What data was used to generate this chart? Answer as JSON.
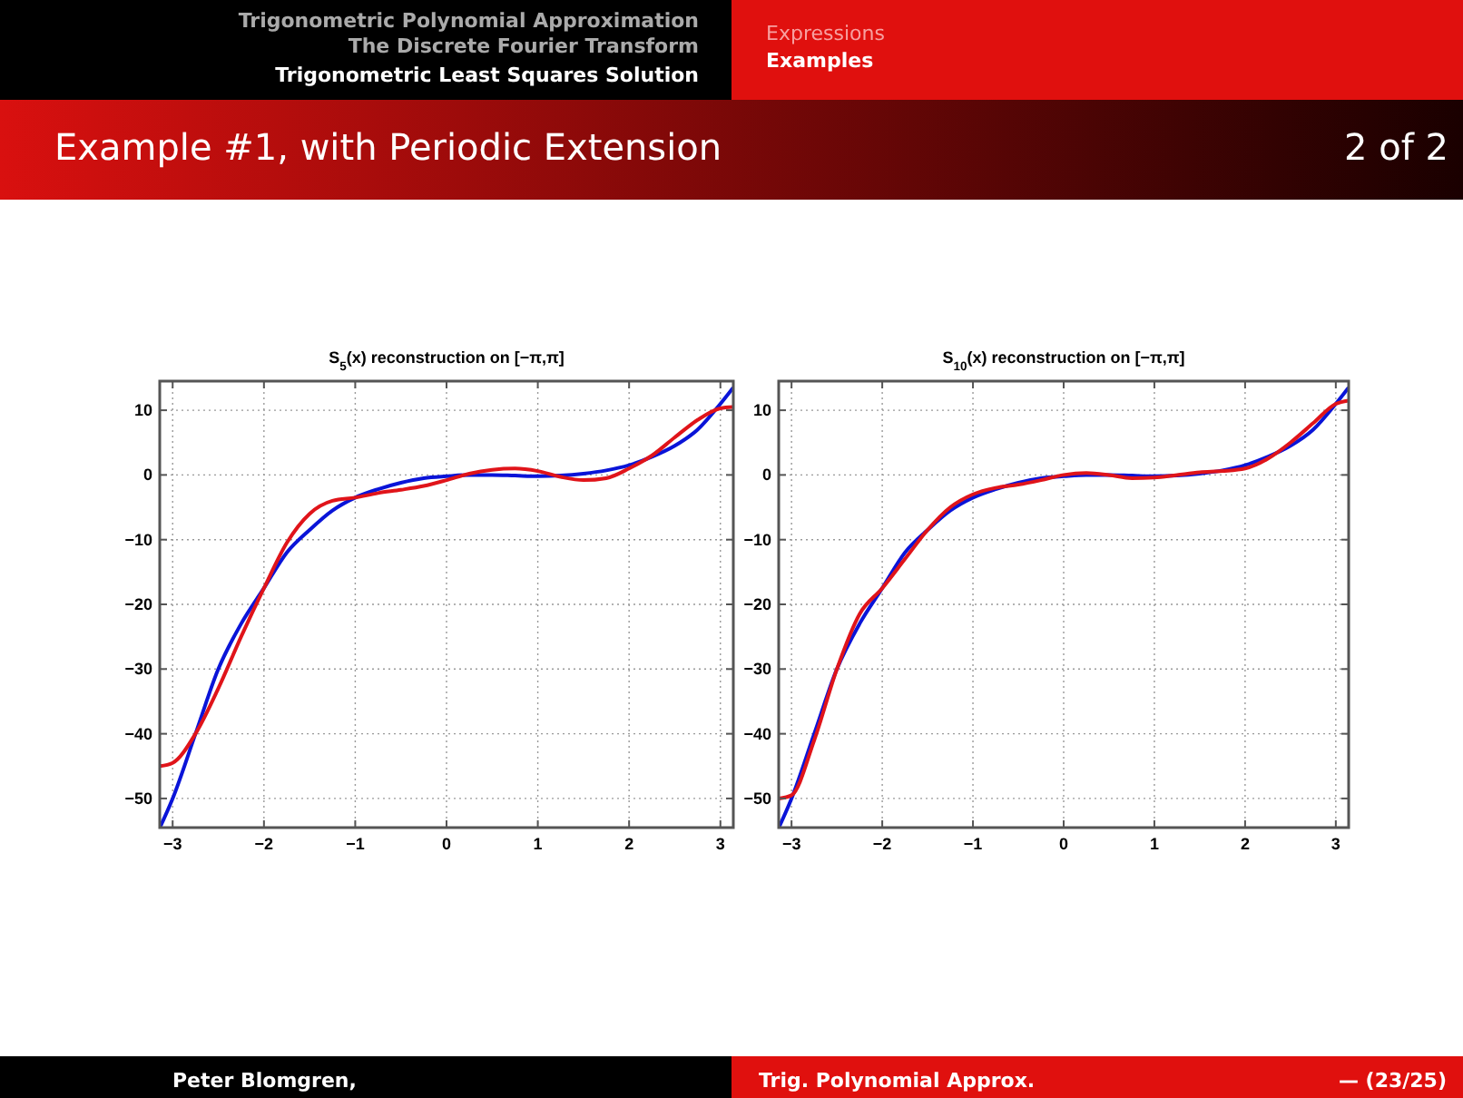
{
  "chart_data": [
    {
      "type": "line",
      "title": "S$_{5}$(x) reconstruction on [−π,π]",
      "xlim": [
        -3.1416,
        3.1416
      ],
      "ylim": [
        -54.5,
        14.5
      ],
      "xticks": [
        {
          "value": -3,
          "label": "−3"
        },
        {
          "value": -2,
          "label": "−2"
        },
        {
          "value": -1,
          "label": "−1"
        },
        {
          "value": 0,
          "label": "0"
        },
        1,
        2,
        3
      ],
      "yticks": [
        {
          "value": -50,
          "label": "−50"
        },
        {
          "value": -40,
          "label": "−40"
        },
        {
          "value": -30,
          "label": "−30"
        },
        {
          "value": -20,
          "label": "−20"
        },
        {
          "value": -10,
          "label": "−10"
        },
        {
          "value": 0,
          "label": "0"
        },
        10
      ],
      "grid": true,
      "x": [
        -3.14,
        -3,
        -2.75,
        -2.5,
        -2.25,
        -2,
        -1.75,
        -1.5,
        -1.25,
        -1,
        -0.75,
        -0.5,
        -0.25,
        0,
        0.25,
        0.5,
        0.75,
        1,
        1.25,
        1.5,
        1.75,
        2,
        2.25,
        2.5,
        2.75,
        3,
        3.14
      ],
      "series": [
        {
          "color": "#0a14d8",
          "values": [
            -54.5,
            -50,
            -40,
            -30,
            -23,
            -17.5,
            -12,
            -8.5,
            -5.5,
            -3.5,
            -2.2,
            -1.2,
            -0.5,
            -0.2,
            0,
            0,
            -0.1,
            -0.2,
            -0.1,
            0.2,
            0.7,
            1.5,
            2.8,
            4.5,
            7,
            11,
            13.5
          ]
        },
        {
          "color": "#e0141a",
          "values": [
            -45,
            -44.5,
            -40,
            -33,
            -25,
            -17.5,
            -10.5,
            -6,
            -4,
            -3.5,
            -2.8,
            -2.3,
            -1.7,
            -0.8,
            0.2,
            0.8,
            1,
            0.6,
            -0.3,
            -0.8,
            -0.5,
            1,
            3,
            5.8,
            8.5,
            10.3,
            10.5
          ]
        }
      ],
      "annotations": [
        "Trigonometric Polynomial Approximation",
        "The Discrete Fourier Transform",
        "Trigonometric Least Squares Solution",
        "Expressions",
        "Examples",
        "Example #1, with Periodic Extension",
        "2 of 2",
        "Peter Blomgren,",
        "Trig. Polynomial Approx.",
        "— (23/25)"
      ]
    },
    {
      "type": "line",
      "title": "S$_{10}$(x) reconstruction on [−π,π]",
      "xlim": [
        -3.1416,
        3.1416
      ],
      "ylim": [
        -54.5,
        14.5
      ],
      "xticks": [
        {
          "value": -3,
          "label": "−3"
        },
        {
          "value": -2,
          "label": "−2"
        },
        {
          "value": -1,
          "label": "−1"
        },
        {
          "value": 0,
          "label": "0"
        },
        1,
        2,
        3
      ],
      "yticks": [
        {
          "value": -50,
          "label": "−50"
        },
        {
          "value": -40,
          "label": "−40"
        },
        {
          "value": -30,
          "label": "−30"
        },
        {
          "value": -20,
          "label": "−20"
        },
        {
          "value": -10,
          "label": "−10"
        },
        {
          "value": 0,
          "label": "0"
        },
        10
      ],
      "grid": true,
      "x": [
        -3.14,
        -3,
        -2.75,
        -2.5,
        -2.25,
        -2,
        -1.75,
        -1.5,
        -1.25,
        -1,
        -0.75,
        -0.5,
        -0.25,
        0,
        0.25,
        0.5,
        0.75,
        1,
        1.25,
        1.5,
        1.75,
        2,
        2.25,
        2.5,
        2.75,
        3,
        3.14
      ],
      "series": [
        {
          "color": "#0a14d8",
          "values": [
            -54.5,
            -50,
            -40,
            -30,
            -23,
            -17.5,
            -12,
            -8.5,
            -5.5,
            -3.5,
            -2.2,
            -1.2,
            -0.5,
            -0.2,
            0,
            0,
            -0.1,
            -0.2,
            -0.1,
            0.2,
            0.7,
            1.5,
            2.8,
            4.5,
            7,
            11,
            13.5
          ]
        },
        {
          "color": "#e0141a",
          "values": [
            -50,
            -49.5,
            -41,
            -30,
            -21.5,
            -17.5,
            -13,
            -8.5,
            -5,
            -3,
            -2,
            -1.5,
            -0.8,
            0,
            0.3,
            0,
            -0.5,
            -0.4,
            0,
            0.4,
            0.6,
            1,
            2.5,
            5,
            8,
            11,
            11.5
          ]
        }
      ]
    }
  ]
}
